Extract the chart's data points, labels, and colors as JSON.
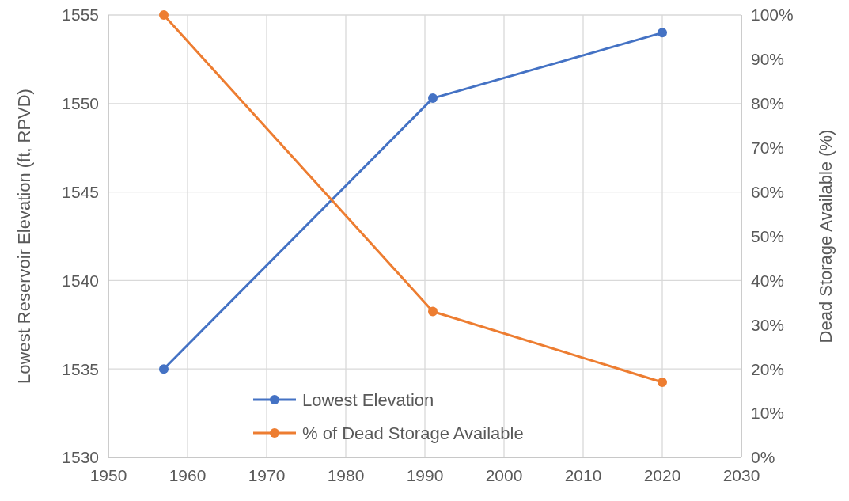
{
  "chart_data": {
    "type": "line",
    "xlabel": null,
    "ylabel": "Lowest Reservoir Elevation (ft, RPVD)",
    "y2label": "Dead Storage Available (%)",
    "x": [
      1957,
      1991,
      2020
    ],
    "series": [
      {
        "name": "Lowest Elevation",
        "color": "#4472c4",
        "values": [
          1535,
          1550.3,
          1554
        ]
      },
      {
        "name": "% of Dead Storage Available",
        "color": "#ed7d31",
        "values": [
          100,
          33,
          17
        ],
        "axis": "y2"
      }
    ],
    "xlim": [
      1950,
      2030
    ],
    "xticks": [
      1950,
      1960,
      1970,
      1980,
      1990,
      2000,
      2010,
      2020,
      2030
    ],
    "ylim": [
      1530,
      1555
    ],
    "yticks": [
      1530,
      1535,
      1540,
      1545,
      1550,
      1555
    ],
    "y2lim": [
      0,
      100
    ],
    "y2ticks": [
      {
        "value": 0,
        "label": "0%"
      },
      {
        "value": 10,
        "label": "10%"
      },
      {
        "value": 20,
        "label": "20%"
      },
      {
        "value": 30,
        "label": "30%"
      },
      {
        "value": 40,
        "label": "40%"
      },
      {
        "value": 50,
        "label": "50%"
      },
      {
        "value": 60,
        "label": "60%"
      },
      {
        "value": 70,
        "label": "70%"
      },
      {
        "value": 80,
        "label": "80%"
      },
      {
        "value": 90,
        "label": "90%"
      },
      {
        "value": 100,
        "label": "100%"
      }
    ],
    "grid": true,
    "legend": "bottom",
    "marker": "circle",
    "line_style": "solid"
  }
}
